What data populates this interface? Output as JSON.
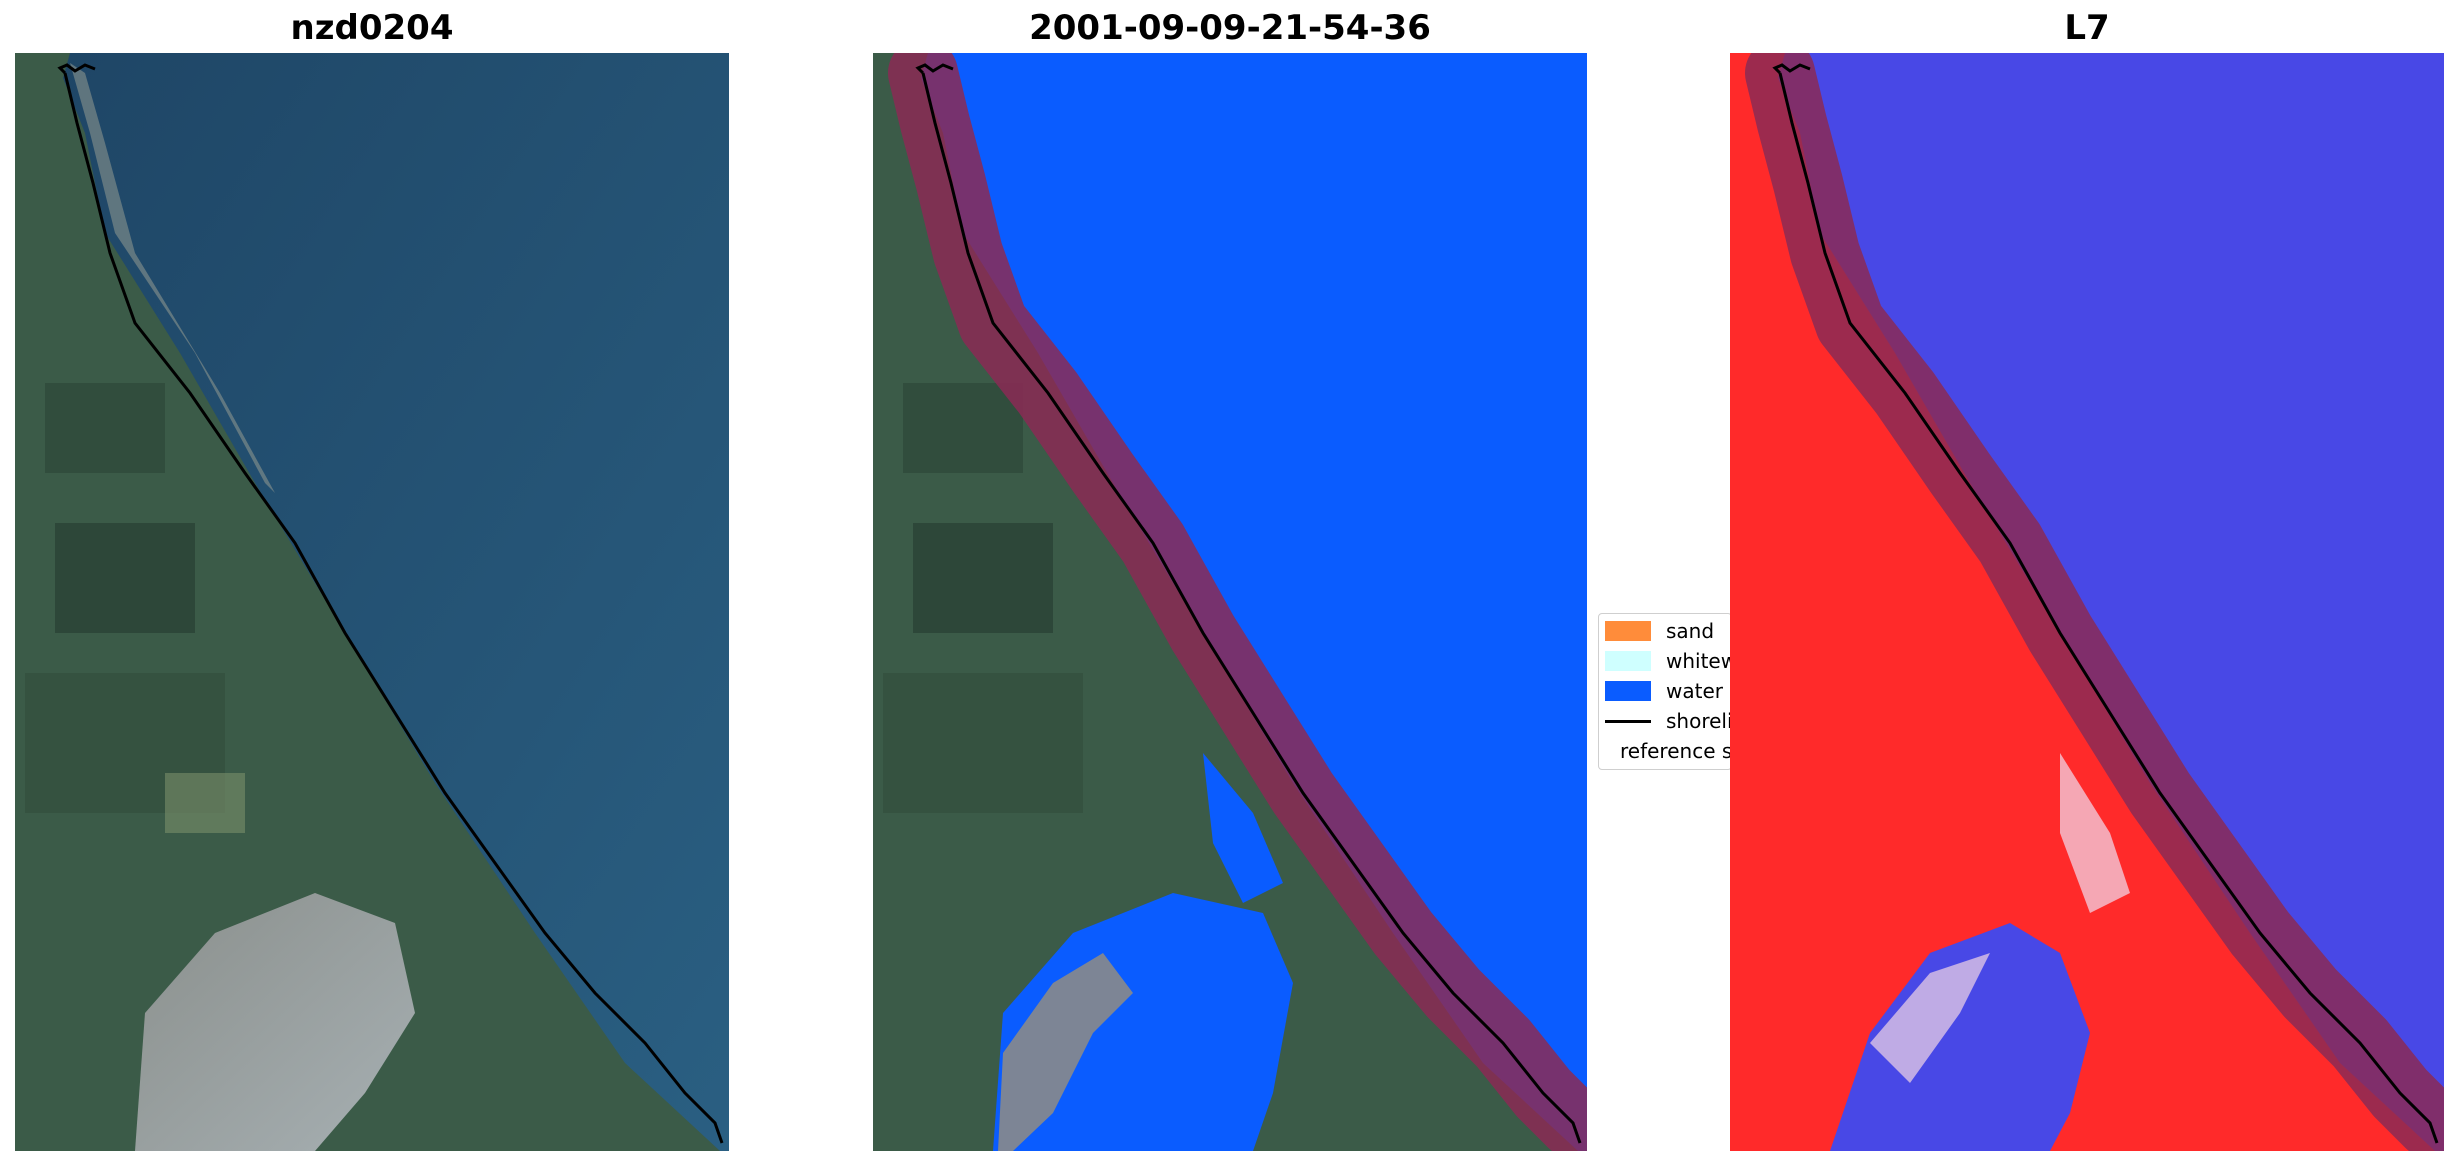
{
  "panels": [
    {
      "title": "nzd0204"
    },
    {
      "title": "2001-09-09-21-54-36"
    },
    {
      "title": "L7"
    }
  ],
  "legend": {
    "items": [
      {
        "label": "sand",
        "color": "#ff8c3a",
        "kind": "patch"
      },
      {
        "label": "whitewater",
        "color": "#cfffff",
        "kind": "patch"
      },
      {
        "label": "water",
        "color": "#0a5cff",
        "kind": "patch"
      },
      {
        "label": "shoreline",
        "color": "#000000",
        "kind": "line"
      },
      {
        "label": "reference shoreline buffer",
        "color": "#9b3434",
        "kind": "patch"
      }
    ]
  },
  "colors": {
    "sea_rgb": "#234f70",
    "land_rgb": "#3c5c4a",
    "water_class": "#0a5cff",
    "buffer": "#8b2a55",
    "index_land": "#ff2020",
    "index_water": "#4040e0"
  }
}
